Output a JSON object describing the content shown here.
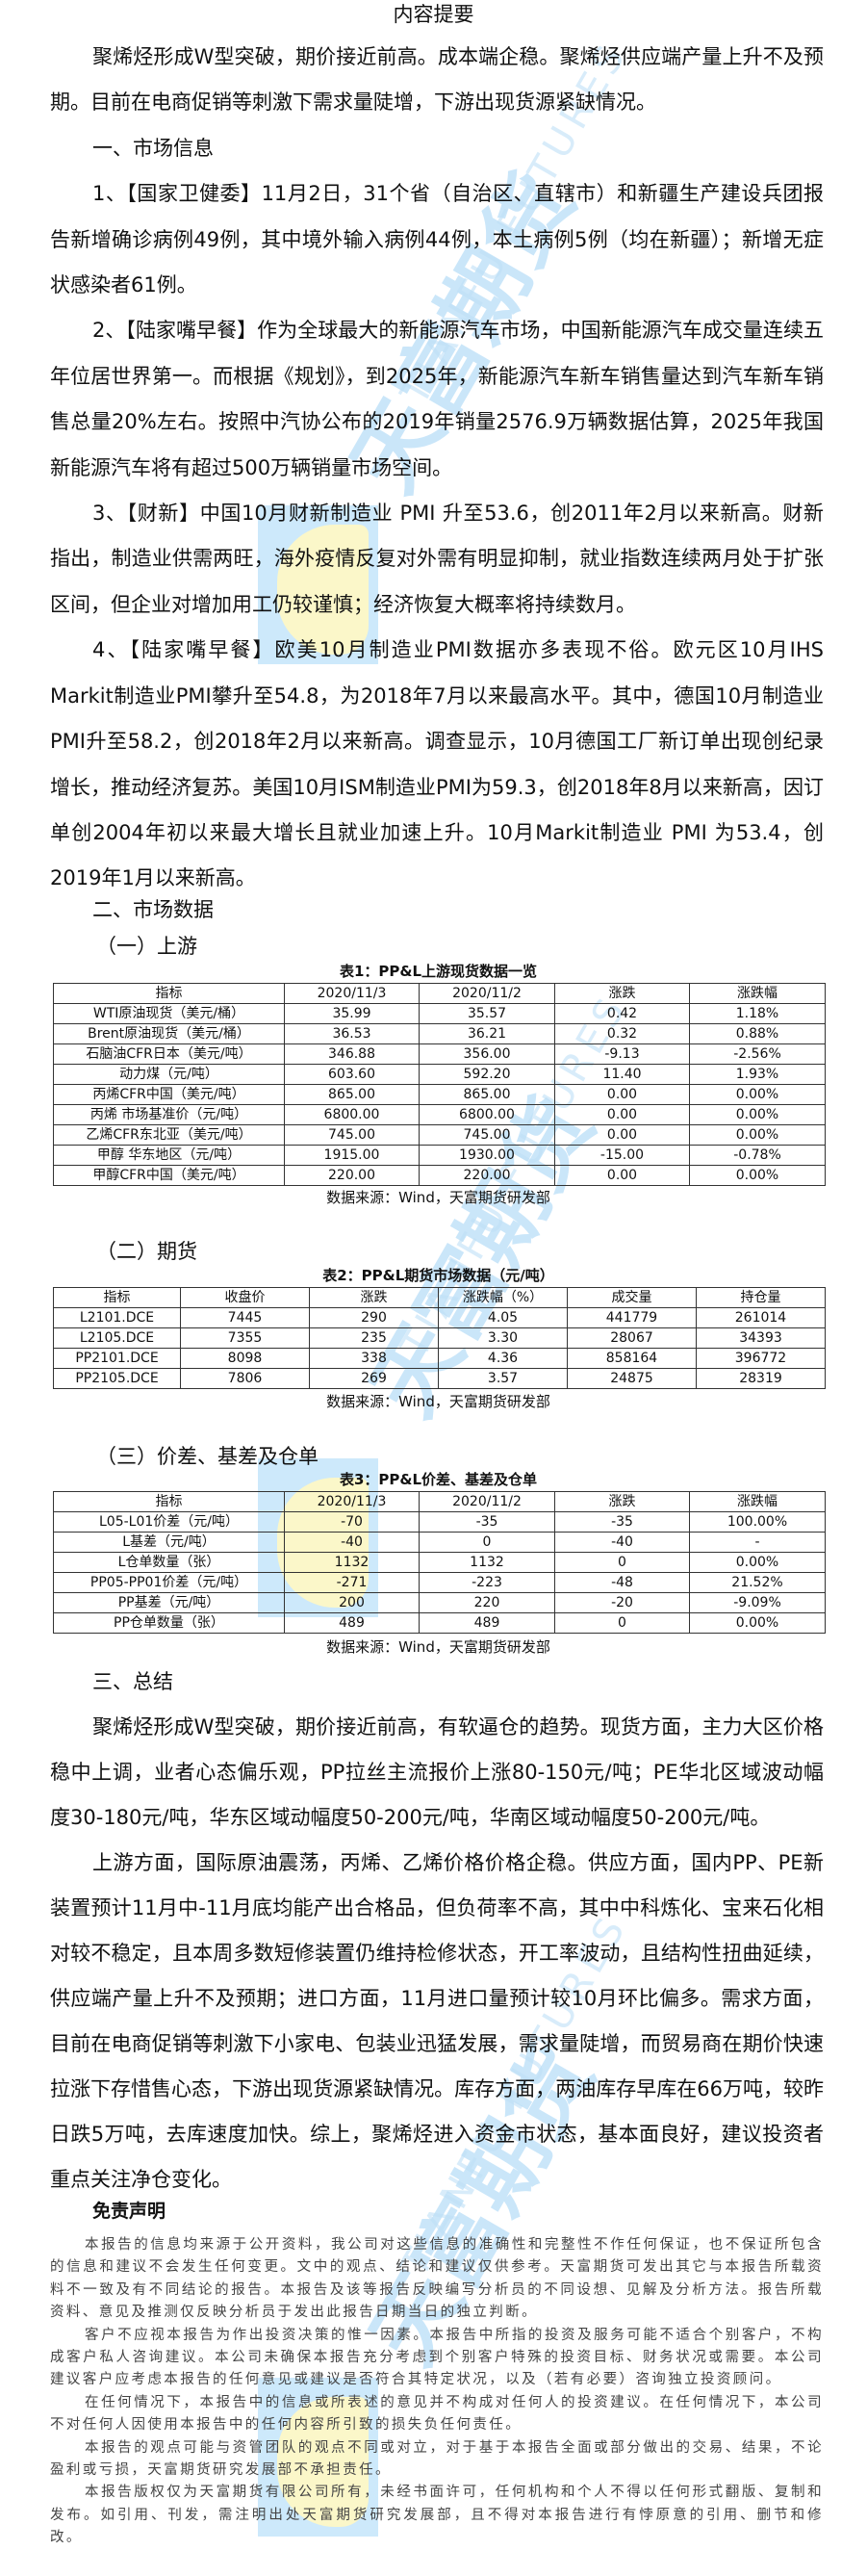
{
  "title": "内容提要",
  "summary": "聚烯烃形成W型突破，期价接近前高。成本端企稳。聚烯烃供应端产量上升不及预期。目前在电商促销等刺激下需求量陡增，下游出现货源紧缺情况。",
  "section1": {
    "heading": "一、市场信息",
    "items": [
      "1、【国家卫健委】11月2日，31个省（自治区、直辖市）和新疆生产建设兵团报告新增确诊病例49例，其中境外输入病例44例，本土病例5例（均在新疆）；新增无症状感染者61例。",
      "2、【陆家嘴早餐】作为全球最大的新能源汽车市场，中国新能源汽车成交量连续五年位居世界第一。而根据《规划》，到2025年，新能源汽车新车销售量达到汽车新车销售总量20%左右。按照中汽协公布的2019年销量2576.9万辆数据估算，2025年我国新能源汽车将有超过500万辆销量市场空间。",
      "3、【财新】中国10月财新制造业 PMI 升至53.6，创2011年2月以来新高。财新指出，制造业供需两旺，海外疫情反复对外需有明显抑制，就业指数连续两月处于扩张区间，但企业对增加用工仍较谨慎；经济恢复大概率将持续数月。",
      "4、【陆家嘴早餐】欧美10月制造业PMI数据亦多表现不俗。欧元区10月IHS Markit制造业PMI攀升至54.8，为2018年7月以来最高水平。其中，德国10月制造业PMI升至58.2，创2018年2月以来新高。调查显示，10月德国工厂新订单出现创纪录增长，推动经济复苏。美国10月ISM制造业PMI为59.3，创2018年8月以来新高，因订单创2004年初以来最大增长且就业加速上升。10月Markit制造业 PMI 为53.4，创2019年1月以来新高。"
    ]
  },
  "section2": {
    "heading": "二、市场数据",
    "sub1": "（一）上游",
    "sub2": "（二）期货",
    "sub3": "（三）价差、基差及仓单",
    "source": "数据来源：Wind，天富期货研发部",
    "table1": {
      "caption": "表1：PP&L上游现货数据一览",
      "headers": [
        "指标",
        "2020/11/3",
        "2020/11/2",
        "涨跌",
        "涨跌幅"
      ],
      "rows": [
        [
          "WTI原油现货（美元/桶）",
          "35.99",
          "35.57",
          "0.42",
          "1.18%"
        ],
        [
          "Brent原油现货（美元/桶）",
          "36.53",
          "36.21",
          "0.32",
          "0.88%"
        ],
        [
          "石脑油CFR日本（美元/吨）",
          "346.88",
          "356.00",
          "-9.13",
          "-2.56%"
        ],
        [
          "动力煤（元/吨）",
          "603.60",
          "592.20",
          "11.40",
          "1.93%"
        ],
        [
          "丙烯CFR中国（美元/吨）",
          "865.00",
          "865.00",
          "0.00",
          "0.00%"
        ],
        [
          "丙烯 市场基准价（元/吨）",
          "6800.00",
          "6800.00",
          "0.00",
          "0.00%"
        ],
        [
          "乙烯CFR东北亚（美元/吨）",
          "745.00",
          "745.00",
          "0.00",
          "0.00%"
        ],
        [
          "甲醇 华东地区（元/吨）",
          "1915.00",
          "1930.00",
          "-15.00",
          "-0.78%"
        ],
        [
          "甲醇CFR中国（美元/吨）",
          "220.00",
          "220.00",
          "0.00",
          "0.00%"
        ]
      ]
    },
    "table2": {
      "caption": "表2：PP&L期货市场数据（元/吨）",
      "headers": [
        "指标",
        "收盘价",
        "涨跌",
        "涨跌幅（%）",
        "成交量",
        "持仓量"
      ],
      "rows": [
        [
          "L2101.DCE",
          "7445",
          "290",
          "4.05",
          "441779",
          "261014"
        ],
        [
          "L2105.DCE",
          "7355",
          "235",
          "3.30",
          "28067",
          "34393"
        ],
        [
          "PP2101.DCE",
          "8098",
          "338",
          "4.36",
          "858164",
          "396772"
        ],
        [
          "PP2105.DCE",
          "7806",
          "269",
          "3.57",
          "24875",
          "28319"
        ]
      ]
    },
    "table3": {
      "caption": "表3：PP&L价差、基差及仓单",
      "headers": [
        "指标",
        "2020/11/3",
        "2020/11/2",
        "涨跌",
        "涨跌幅"
      ],
      "rows": [
        [
          "L05-L01价差（元/吨）",
          "-70",
          "-35",
          "-35",
          "100.00%"
        ],
        [
          "L基差（元/吨）",
          "-40",
          "0",
          "-40",
          "-"
        ],
        [
          "L仓单数量（张）",
          "1132",
          "1132",
          "0",
          "0.00%"
        ],
        [
          "PP05-PP01价差（元/吨）",
          "-271",
          "-223",
          "-48",
          "21.52%"
        ],
        [
          "PP基差（元/吨）",
          "200",
          "220",
          "-20",
          "-9.09%"
        ],
        [
          "PP仓单数量（张）",
          "489",
          "489",
          "0",
          "0.00%"
        ]
      ]
    }
  },
  "section3": {
    "heading": "三、总结",
    "paragraphs": [
      "聚烯烃形成W型突破，期价接近前高，有软逼仓的趋势。现货方面，主力大区价格稳中上调，业者心态偏乐观，PP拉丝主流报价上涨80-150元/吨；PE华北区域波动幅度30-180元/吨，华东区域动幅度50-200元/吨，华南区域动幅度50-200元/吨。",
      "上游方面，国际原油震荡，丙烯、乙烯价格价格企稳。供应方面，国内PP、PE新装置预计11月中-11月底均能产出合格品，但负荷率不高，其中中科炼化、宝来石化相对较不稳定，且本周多数短修装置仍维持检修状态，开工率波动，且结构性扭曲延续，供应端产量上升不及预期；进口方面，11月进口量预计较10月环比偏多。需求方面，目前在电商促销等刺激下小家电、包装业迅猛发展，需求量陡增，而贸易商在期价快速拉涨下存惜售心态，下游出现货源紧缺情况。库存方面，两油库存早库在66万吨，较昨日跌5万吨，去库速度加快。综上，聚烯烃进入资金市状态，基本面良好，建议投资者重点关注净仓变化。"
    ]
  },
  "disclaimer": {
    "title": "免责声明",
    "paragraphs": [
      "本报告的信息均来源于公开资料，我公司对这些信息的准确性和完整性不作任何保证，也不保证所包含的信息和建议不会发生任何变更。文中的观点、结论和建议仅供参考。天富期货可发出其它与本报告所载资料不一致及有不同结论的报告。本报告及该等报告反映编写分析员的不同设想、见解及分析方法。报告所载资料、意见及推测仅反映分析员于发出此报告日期当日的独立判断。",
      "客户不应视本报告为作出投资决策的惟一因素。本报告中所指的投资及服务可能不适合个别客户，不构成客户私人咨询建议。本公司未确保本报告充分考虑到个别客户特殊的投资目标、财务状况或需要。本公司建议客户应考虑本报告的任何意见或建议是否符合其特定状况，以及（若有必要）咨询独立投资顾问。",
      "在任何情况下，本报告中的信息或所表述的意见并不构成对任何人的投资建议。在任何情况下，本公司不对任何人因使用本报告中的任何内容所引致的损失负任何责任。",
      "本报告的观点可能与资管团队的观点不同或对立，对于基于本报告全面或部分做出的交易、结果，不论盈利或亏损，天富期货研究发展部不承担责任。",
      "本报告版权仅为天富期货有限公司所有，未经书面许可，任何机构和个人不得以任何形式翻版、复制和发布。如引用、刊发，需注明出处天富期货研究发展部，且不得对本报告进行有悖原意的引用、删节和修改。"
    ]
  },
  "watermark": {
    "cn": "天富期货",
    "en": "TIANFU FUTURES",
    "colors": {
      "blue": "#cde9fb",
      "yellow": "#fbf7c9"
    }
  }
}
